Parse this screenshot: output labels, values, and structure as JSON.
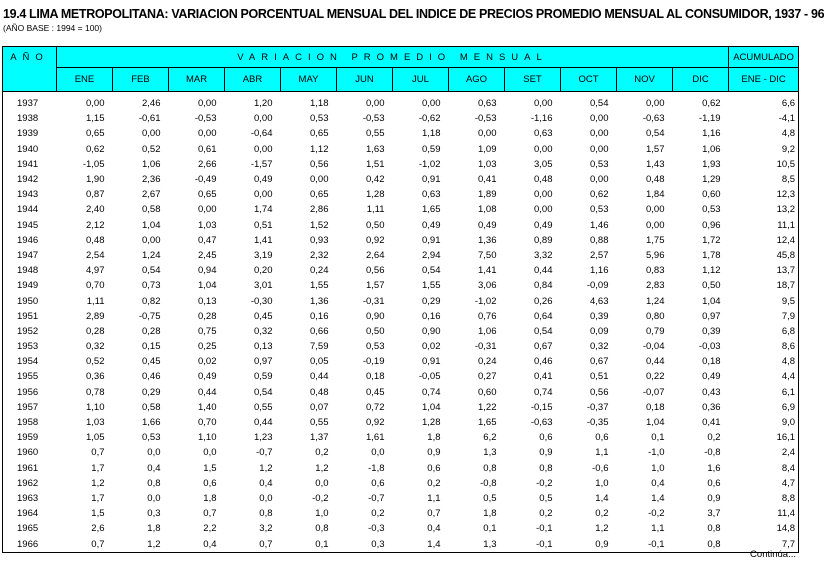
{
  "title": "19.4 LIMA METROPOLITANA: VARIACION PORCENTUAL MENSUAL DEL INDICE DE PRECIOS PROMEDIO MENSUAL AL CONSUMIDOR, 1937 - 96",
  "subtitle": "(AÑO BASE : 1994 = 100)",
  "header": {
    "year": "AÑO",
    "group": "VARIACION PROMEDIO MENSUAL",
    "accum_top": "ACUMULADO",
    "accum_bottom": "ENE - DIC",
    "months": [
      "ENE",
      "FEB",
      "MAR",
      "ABR",
      "MAY",
      "JUN",
      "JUL",
      "AGO",
      "SET",
      "OCT",
      "NOV",
      "DIC"
    ]
  },
  "header_color": "#00ffff",
  "rows": [
    [
      "1937",
      "0,00",
      "2,46",
      "0,00",
      "1,20",
      "1,18",
      "0,00",
      "0,00",
      "0,63",
      "0,00",
      "0,54",
      "0,00",
      "0,62",
      "6,6"
    ],
    [
      "1938",
      "1,15",
      "-0,61",
      "-0,53",
      "0,00",
      "0,53",
      "-0,53",
      "-0,62",
      "-0,53",
      "-1,16",
      "0,00",
      "-0,63",
      "-1,19",
      "-4,1"
    ],
    [
      "1939",
      "0,65",
      "0,00",
      "0,00",
      "-0,64",
      "0,65",
      "0,55",
      "1,18",
      "0,00",
      "0,63",
      "0,00",
      "0,54",
      "1,16",
      "4,8"
    ],
    [
      "1940",
      "0,62",
      "0,52",
      "0,61",
      "0,00",
      "1,12",
      "1,63",
      "0,59",
      "1,09",
      "0,00",
      "0,00",
      "1,57",
      "1,06",
      "9,2"
    ],
    [
      "1941",
      "-1,05",
      "1,06",
      "2,66",
      "-1,57",
      "0,56",
      "1,51",
      "-1,02",
      "1,03",
      "3,05",
      "0,53",
      "1,43",
      "1,93",
      "10,5"
    ],
    [
      "1942",
      "1,90",
      "2,36",
      "-0,49",
      "0,49",
      "0,00",
      "0,42",
      "0,91",
      "0,41",
      "0,48",
      "0,00",
      "0,48",
      "1,29",
      "8,5"
    ],
    [
      "1943",
      "0,87",
      "2,67",
      "0,65",
      "0,00",
      "0,65",
      "1,28",
      "0,63",
      "1,89",
      "0,00",
      "0,62",
      "1,84",
      "0,60",
      "12,3"
    ],
    [
      "1944",
      "2,40",
      "0,58",
      "0,00",
      "1,74",
      "2,86",
      "1,11",
      "1,65",
      "1,08",
      "0,00",
      "0,53",
      "0,00",
      "0,53",
      "13,2"
    ],
    [
      "1945",
      "2,12",
      "1,04",
      "1,03",
      "0,51",
      "1,52",
      "0,50",
      "0,49",
      "0,49",
      "0,49",
      "1,46",
      "0,00",
      "0,96",
      "11,1"
    ],
    [
      "1946",
      "0,48",
      "0,00",
      "0,47",
      "1,41",
      "0,93",
      "0,92",
      "0,91",
      "1,36",
      "0,89",
      "0,88",
      "1,75",
      "1,72",
      "12,4"
    ],
    [
      "1947",
      "2,54",
      "1,24",
      "2,45",
      "3,19",
      "2,32",
      "2,64",
      "2,94",
      "7,50",
      "3,32",
      "2,57",
      "5,96",
      "1,78",
      "45,8"
    ],
    [
      "1948",
      "4,97",
      "0,54",
      "0,94",
      "0,20",
      "0,24",
      "0,56",
      "0,54",
      "1,41",
      "0,44",
      "1,16",
      "0,83",
      "1,12",
      "13,7"
    ],
    [
      "1949",
      "0,70",
      "0,73",
      "1,04",
      "3,01",
      "1,55",
      "1,57",
      "1,55",
      "3,06",
      "0,84",
      "-0,09",
      "2,83",
      "0,50",
      "18,7"
    ],
    [
      "1950",
      "1,11",
      "0,82",
      "0,13",
      "-0,30",
      "1,36",
      "-0,31",
      "0,29",
      "-1,02",
      "0,26",
      "4,63",
      "1,24",
      "1,04",
      "9,5"
    ],
    [
      "1951",
      "2,89",
      "-0,75",
      "0,28",
      "0,45",
      "0,16",
      "0,90",
      "0,16",
      "0,76",
      "0,64",
      "0,39",
      "0,80",
      "0,97",
      "7,9"
    ],
    [
      "1952",
      "0,28",
      "0,28",
      "0,75",
      "0,32",
      "0,66",
      "0,50",
      "0,90",
      "1,06",
      "0,54",
      "0,09",
      "0,79",
      "0,39",
      "6,8"
    ],
    [
      "1953",
      "0,32",
      "0,15",
      "0,25",
      "0,13",
      "7,59",
      "0,53",
      "0,02",
      "-0,31",
      "0,67",
      "0,32",
      "-0,04",
      "-0,03",
      "8,6"
    ],
    [
      "1954",
      "0,52",
      "0,45",
      "0,02",
      "0,97",
      "0,05",
      "-0,19",
      "0,91",
      "0,24",
      "0,46",
      "0,67",
      "0,44",
      "0,18",
      "4,8"
    ],
    [
      "1955",
      "0,36",
      "0,46",
      "0,49",
      "0,59",
      "0,44",
      "0,18",
      "-0,05",
      "0,27",
      "0,41",
      "0,51",
      "0,22",
      "0,49",
      "4,4"
    ],
    [
      "1956",
      "0,78",
      "0,29",
      "0,44",
      "0,54",
      "0,48",
      "0,45",
      "0,74",
      "0,60",
      "0,74",
      "0,56",
      "-0,07",
      "0,43",
      "6,1"
    ],
    [
      "1957",
      "1,10",
      "0,58",
      "1,40",
      "0,55",
      "0,07",
      "0,72",
      "1,04",
      "1,22",
      "-0,15",
      "-0,37",
      "0,18",
      "0,36",
      "6,9"
    ],
    [
      "1958",
      "1,03",
      "1,66",
      "0,70",
      "0,44",
      "0,55",
      "0,92",
      "1,28",
      "1,65",
      "-0,63",
      "-0,35",
      "1,04",
      "0,41",
      "9,0"
    ],
    [
      "1959",
      "1,05",
      "0,53",
      "1,10",
      "1,23",
      "1,37",
      "1,61",
      "1,8",
      "6,2",
      "0,6",
      "0,6",
      "0,1",
      "0,2",
      "16,1"
    ],
    [
      "1960",
      "0,7",
      "0,0",
      "0,0",
      "-0,7",
      "0,2",
      "0,0",
      "0,9",
      "1,3",
      "0,9",
      "1,1",
      "-1,0",
      "-0,8",
      "2,4"
    ],
    [
      "1961",
      "1,7",
      "0,4",
      "1,5",
      "1,2",
      "1,2",
      "-1,8",
      "0,6",
      "0,8",
      "0,8",
      "-0,6",
      "1,0",
      "1,6",
      "8,4"
    ],
    [
      "1962",
      "1,2",
      "0,8",
      "0,6",
      "0,4",
      "0,0",
      "0,6",
      "0,2",
      "-0,8",
      "-0,2",
      "1,0",
      "0,4",
      "0,6",
      "4,7"
    ],
    [
      "1963",
      "1,7",
      "0,0",
      "1,8",
      "0,0",
      "-0,2",
      "-0,7",
      "1,1",
      "0,5",
      "0,5",
      "1,4",
      "1,4",
      "0,9",
      "8,8"
    ],
    [
      "1964",
      "1,5",
      "0,3",
      "0,7",
      "0,8",
      "1,0",
      "0,2",
      "0,7",
      "1,8",
      "0,2",
      "0,2",
      "-0,2",
      "3,7",
      "11,4"
    ],
    [
      "1965",
      "2,6",
      "1,8",
      "2,2",
      "3,2",
      "0,8",
      "-0,3",
      "0,4",
      "0,1",
      "-0,1",
      "1,2",
      "1,1",
      "0,8",
      "14,8"
    ],
    [
      "1966",
      "0,7",
      "1,2",
      "0,4",
      "0,7",
      "0,1",
      "0,3",
      "1,4",
      "1,3",
      "-0,1",
      "0,9",
      "-0,1",
      "0,8",
      "7,7"
    ]
  ],
  "footer": "Continúa..."
}
